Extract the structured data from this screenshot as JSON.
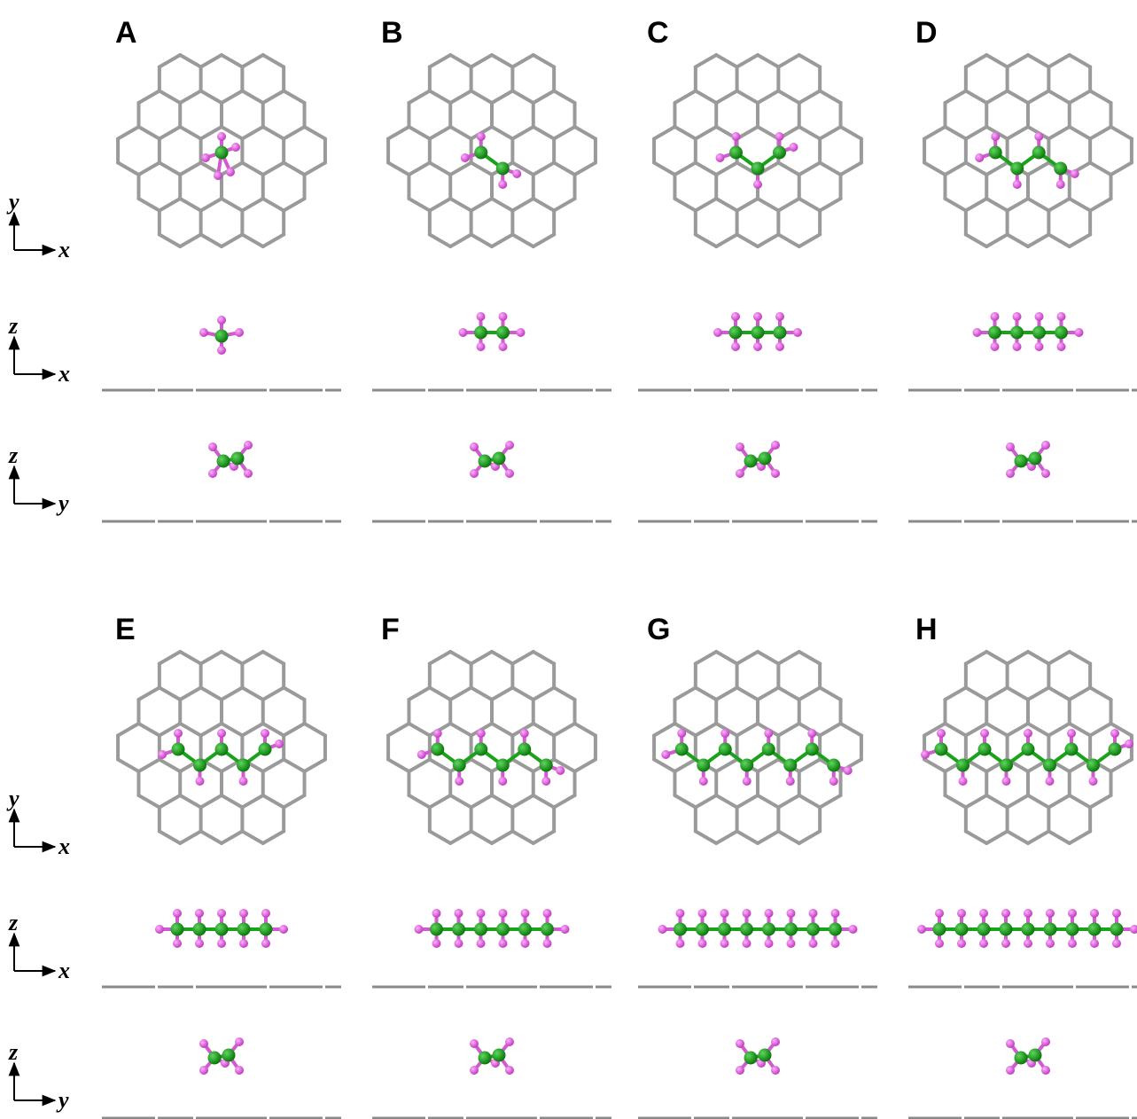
{
  "panels": [
    "A",
    "B",
    "C",
    "D",
    "E",
    "F",
    "G",
    "H"
  ],
  "axes": [
    {
      "vertical": "y",
      "horizontal": "x"
    },
    {
      "vertical": "z",
      "horizontal": "x"
    },
    {
      "vertical": "z",
      "horizontal": "y"
    }
  ]
}
